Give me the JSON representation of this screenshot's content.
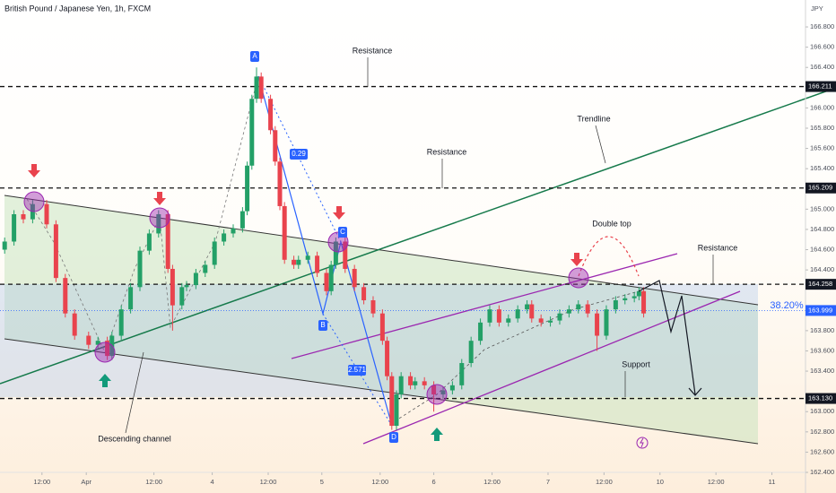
{
  "chart_data": {
    "type": "candlestick",
    "title": "British Pound / Japanese Yen, 1h, FXCM",
    "currency": "JPY",
    "up_color": "#23a067",
    "down_color": "#e9434d",
    "x": [
      1,
      3,
      5,
      7,
      10,
      12,
      14,
      16,
      19,
      21,
      23,
      24,
      26,
      28,
      30,
      32,
      34,
      36,
      37,
      39,
      40,
      42,
      44,
      46,
      48,
      50,
      52,
      53,
      54,
      55,
      56,
      58,
      59,
      60,
      61,
      63,
      64,
      66,
      68,
      70,
      71,
      72,
      74,
      76,
      78,
      80,
      82,
      83,
      84,
      85,
      86,
      88,
      89,
      91,
      93,
      95,
      97,
      99,
      101,
      103,
      105,
      107,
      109,
      111,
      113,
      114,
      116,
      118,
      120,
      122,
      124,
      126,
      128,
      130,
      132,
      134,
      136,
      137,
      138
    ],
    "open": [
      164.6,
      164.68,
      164.95,
      164.9,
      165.05,
      164.85,
      164.32,
      163.97,
      163.75,
      163.66,
      163.7,
      163.55,
      163.75,
      164.01,
      164.23,
      164.59,
      164.76,
      164.95,
      164.41,
      164.05,
      164.23,
      164.25,
      164.37,
      164.45,
      164.68,
      164.76,
      164.81,
      164.98,
      165.43,
      166.09,
      166.31,
      166.09,
      165.78,
      165.47,
      165.03,
      164.5,
      164.45,
      164.5,
      164.54,
      164.37,
      164.19,
      164.45,
      164.68,
      164.41,
      164.23,
      164.1,
      163.97,
      163.7,
      163.35,
      162.86,
      163.17,
      163.35,
      163.26,
      163.3,
      163.26,
      163.17,
      163.21,
      163.26,
      163.48,
      163.7,
      163.88,
      164.01,
      163.88,
      163.92,
      164.01,
      164.06,
      163.92,
      163.88,
      163.9,
      163.97,
      164.01,
      164.06,
      163.97,
      163.75,
      164.01,
      164.1,
      164.12,
      164.14,
      164.19
    ],
    "high": [
      164.72,
      164.99,
      164.99,
      165.09,
      165.09,
      164.89,
      164.36,
      164.01,
      163.79,
      163.74,
      163.74,
      163.79,
      164.05,
      164.27,
      164.63,
      164.8,
      164.99,
      164.99,
      164.45,
      164.27,
      164.29,
      164.41,
      164.49,
      164.72,
      164.8,
      164.85,
      165.02,
      165.47,
      166.13,
      166.4,
      166.35,
      166.13,
      165.82,
      165.51,
      165.07,
      164.54,
      164.54,
      164.58,
      164.58,
      164.41,
      164.49,
      164.72,
      164.72,
      164.45,
      164.27,
      164.14,
      164.01,
      163.74,
      163.39,
      163.21,
      163.39,
      163.39,
      163.34,
      163.34,
      163.3,
      163.25,
      163.3,
      163.52,
      163.74,
      163.92,
      164.05,
      164.05,
      163.96,
      164.05,
      164.1,
      164.1,
      163.96,
      163.94,
      164.01,
      164.05,
      164.1,
      164.1,
      164.01,
      164.05,
      164.14,
      164.16,
      164.18,
      164.23,
      164.23
    ],
    "low": [
      164.56,
      164.64,
      164.86,
      164.86,
      164.81,
      164.28,
      163.93,
      163.71,
      163.62,
      163.62,
      163.51,
      163.51,
      163.71,
      163.97,
      164.19,
      164.55,
      164.72,
      164.37,
      163.8,
      164.01,
      164.19,
      164.21,
      164.33,
      164.41,
      164.64,
      164.72,
      164.77,
      164.94,
      165.39,
      166.05,
      166.05,
      165.74,
      165.43,
      164.99,
      164.46,
      164.41,
      164.41,
      164.46,
      164.33,
      164.15,
      164.15,
      164.41,
      164.37,
      164.19,
      164.06,
      163.93,
      163.66,
      163.31,
      162.82,
      162.82,
      163.13,
      163.22,
      163.22,
      163.22,
      163.0,
      163.13,
      163.17,
      163.22,
      163.44,
      163.66,
      163.84,
      163.84,
      163.84,
      163.88,
      163.97,
      163.88,
      163.84,
      163.84,
      163.86,
      163.93,
      163.97,
      163.93,
      163.6,
      163.71,
      163.97,
      164.06,
      164.08,
      164.1,
      163.93
    ],
    "close": [
      164.68,
      164.95,
      164.9,
      165.05,
      164.85,
      164.32,
      163.97,
      163.75,
      163.66,
      163.7,
      163.55,
      163.75,
      164.01,
      164.23,
      164.59,
      164.76,
      164.95,
      164.41,
      164.05,
      164.23,
      164.25,
      164.37,
      164.45,
      164.68,
      164.76,
      164.81,
      164.98,
      165.43,
      166.09,
      166.31,
      166.09,
      165.78,
      165.47,
      165.03,
      164.5,
      164.45,
      164.5,
      164.54,
      164.37,
      164.19,
      164.45,
      164.68,
      164.41,
      164.23,
      164.1,
      163.97,
      163.7,
      163.35,
      162.86,
      163.17,
      163.35,
      163.26,
      163.3,
      163.26,
      163.17,
      163.21,
      163.26,
      163.48,
      163.7,
      163.88,
      164.01,
      163.88,
      163.92,
      164.01,
      164.06,
      163.92,
      163.88,
      163.9,
      163.97,
      164.01,
      164.06,
      163.97,
      163.75,
      164.01,
      164.1,
      164.12,
      164.14,
      164.19,
      163.97
    ],
    "xlim": [
      0,
      172.7
    ],
    "ylim": [
      162.4,
      167.066
    ],
    "xticks": [
      {
        "value": 9,
        "label": "12:00"
      },
      {
        "value": 18.5,
        "label": "Apr"
      },
      {
        "value": 33,
        "label": "12:00"
      },
      {
        "value": 45.5,
        "label": "4"
      },
      {
        "value": 57.5,
        "label": "12:00"
      },
      {
        "value": 69,
        "label": "5"
      },
      {
        "value": 81.5,
        "label": "12:00"
      },
      {
        "value": 93,
        "label": "6"
      },
      {
        "value": 105.5,
        "label": "12:00"
      },
      {
        "value": 117.5,
        "label": "7"
      },
      {
        "value": 129.5,
        "label": "12:00"
      },
      {
        "value": 141.5,
        "label": "10"
      },
      {
        "value": 153.5,
        "label": "12:00"
      },
      {
        "value": 165.5,
        "label": "11"
      }
    ],
    "yticks": [
      {
        "value": 166.8,
        "label": "166.800"
      },
      {
        "value": 166.6,
        "label": "166.600"
      },
      {
        "value": 166.4,
        "label": "166.400"
      },
      {
        "value": 166.0,
        "label": "166.000"
      },
      {
        "value": 165.8,
        "label": "165.800"
      },
      {
        "value": 165.6,
        "label": "165.600"
      },
      {
        "value": 165.4,
        "label": "165.400"
      },
      {
        "value": 165.0,
        "label": "165.000"
      },
      {
        "value": 164.8,
        "label": "164.800"
      },
      {
        "value": 164.6,
        "label": "164.600"
      },
      {
        "value": 164.4,
        "label": "164.400"
      },
      {
        "value": 163.8,
        "label": "163.800"
      },
      {
        "value": 163.6,
        "label": "163.600"
      },
      {
        "value": 163.4,
        "label": "163.400"
      },
      {
        "value": 163.0,
        "label": "163.000"
      },
      {
        "value": 162.8,
        "label": "162.800"
      },
      {
        "value": 162.6,
        "label": "162.600"
      },
      {
        "value": 162.4,
        "label": "162.400"
      }
    ],
    "levels": [
      166.211,
      165.209,
      164.258,
      {
        "value": 163.13,
        "label": "163.130"
      }
    ],
    "current_price": 163.999,
    "fib_label": "38.20%",
    "annotations": [
      "Resistance",
      "Resistance",
      "Resistance",
      "Trendline",
      "Double top",
      "Support",
      "Descending channel"
    ],
    "points": [
      "A",
      "B",
      "C",
      "D"
    ],
    "ratios": [
      "0.29",
      "2.571"
    ]
  }
}
